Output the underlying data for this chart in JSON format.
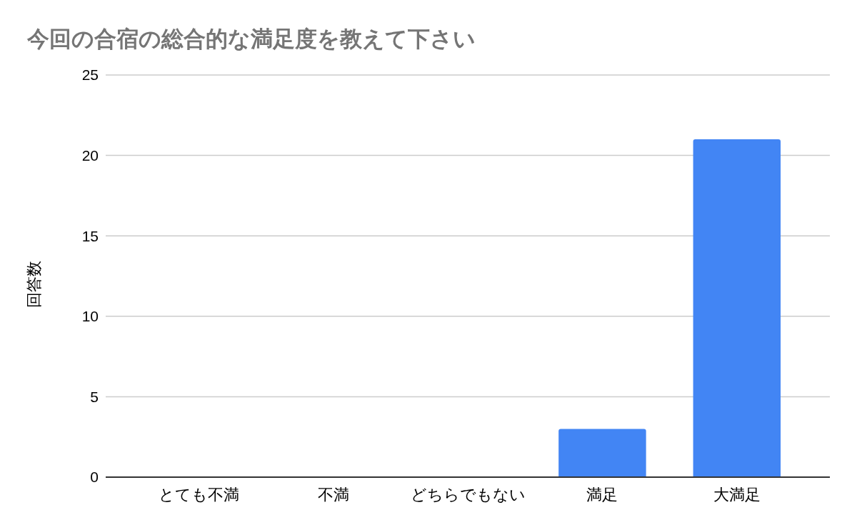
{
  "chart_data": {
    "type": "bar",
    "title": "今回の合宿の総合的な満足度を教えて下さい",
    "ylabel": "回答数",
    "categories": [
      "とても不満",
      "不満",
      "どちらでもない",
      "満足",
      "大満足"
    ],
    "values": [
      0,
      0,
      0,
      3,
      21
    ],
    "color": "#4285f4",
    "ylim": [
      0,
      25
    ],
    "yticks": [
      0,
      5,
      10,
      15,
      20,
      25
    ],
    "grid": "y"
  }
}
